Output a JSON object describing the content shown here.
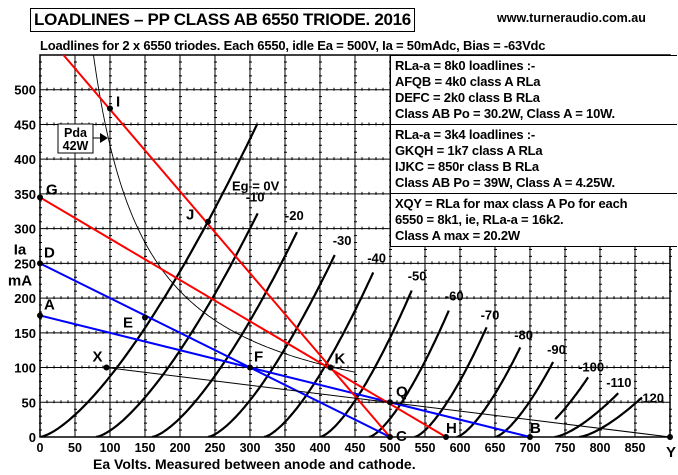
{
  "header": {
    "title": "LOADLINES – PP CLASS AB 6550 TRIODE. 2016",
    "url": "www.turneraudio.com.au",
    "subtitle": "Loadlines for 2 x 6550 triodes. Each 6550, idle Ea = 500V, Ia = 50mAdc, Bias = -63Vdc"
  },
  "notes": [
    [
      "RLa-a = 8k0 loadlines :-",
      "AFQB = 4k0 class A RLa",
      "DEFC = 2k0 class B RLa",
      "Class AB Po = 30.2W, Class A = 10W."
    ],
    [
      "RLa-a = 3k4 loadlines :-",
      "GKQH = 1k7 class A RLa",
      "IJKC = 850r class B RLa",
      "Class AB Po = 39W, Class A = 4.25W."
    ],
    [
      "XQY = RLa for max class A Po for each",
      "6550 = 8k1, ie, RLa-a = 16k2.",
      "Class A max = 20.2W"
    ]
  ],
  "chart_data": {
    "type": "line",
    "title": "LOADLINES – PP CLASS AB 6550 TRIODE. 2016",
    "xlabel": "Ea Volts. Measured between anode and cathode.",
    "ylabel": [
      "Ia",
      "mA"
    ],
    "xlim": [
      0,
      900
    ],
    "ylim": [
      0,
      550
    ],
    "grid": true,
    "xticks": [
      "0",
      "50",
      "100",
      "150",
      "200",
      "250",
      "300",
      "350",
      "400",
      "450",
      "500",
      "550",
      "600",
      "650",
      "700",
      "750",
      "800",
      "850"
    ],
    "yticks": [
      "0",
      "50",
      "100",
      "150",
      "200",
      "250",
      "300",
      "350",
      "400",
      "450",
      "500"
    ],
    "curves": [
      {
        "label": "Eg = 0V",
        "eg": 0,
        "cutoff_ea": 0,
        "end": [
          310,
          450
        ]
      },
      {
        "label": "-10",
        "eg": -10,
        "cutoff_ea": 80,
        "end": [
          311,
          322
        ]
      },
      {
        "label": "-20",
        "eg": -20,
        "cutoff_ea": 160,
        "end": [
          367,
          295
        ]
      },
      {
        "label": "-30",
        "eg": -30,
        "cutoff_ea": 240,
        "end": [
          421,
          262
        ]
      },
      {
        "label": "-40",
        "eg": -40,
        "cutoff_ea": 320,
        "end": [
          476,
          237
        ]
      },
      {
        "label": "-50",
        "eg": -50,
        "cutoff_ea": 400,
        "end": [
          531,
          211
        ]
      },
      {
        "label": "-60",
        "eg": -60,
        "cutoff_ea": 470,
        "end": [
          584,
          182
        ]
      },
      {
        "label": "-70",
        "eg": -70,
        "cutoff_ea": 535,
        "end": [
          638,
          158
        ]
      },
      {
        "label": "-80",
        "eg": -80,
        "cutoff_ea": 595,
        "end": [
          686,
          129
        ]
      },
      {
        "label": "-90",
        "eg": -90,
        "cutoff_ea": 650,
        "end": [
          733,
          108
        ]
      },
      {
        "label": "-100",
        "eg": -100,
        "cutoff_ea": 700,
        "end": [
          783,
          86
        ]
      },
      {
        "label": "-110",
        "eg": -110,
        "cutoff_ea": 735,
        "end": [
          826,
          63
        ]
      },
      {
        "label": "-120",
        "eg": -120,
        "cutoff_ea": 770,
        "end": [
          860,
          57
        ]
      }
    ],
    "loadlines": [
      {
        "name": "AFQB",
        "color": "#0000ff",
        "points": [
          [
            0,
            175
          ],
          [
            700,
            0
          ]
        ]
      },
      {
        "name": "DEFC",
        "color": "#0000ff",
        "points": [
          [
            0,
            250
          ],
          [
            500,
            0
          ]
        ]
      },
      {
        "name": "GKQH",
        "color": "#ff0000",
        "points": [
          [
            0,
            345
          ],
          [
            580,
            0
          ]
        ]
      },
      {
        "name": "IJKC",
        "color": "#ff0000",
        "points": [
          [
            31,
            553
          ],
          [
            500,
            0
          ]
        ]
      },
      {
        "name": "XQY",
        "color": "#000000",
        "points": [
          [
            95,
            100
          ],
          [
            900,
            0
          ]
        ]
      }
    ],
    "power_curve": {
      "label": [
        "Pda",
        "42W"
      ],
      "watts": 42,
      "ea_range": [
        76,
        450
      ]
    },
    "points": [
      {
        "label": "A",
        "ea": 0,
        "ia": 175
      },
      {
        "label": "D",
        "ea": 0,
        "ia": 250
      },
      {
        "label": "G",
        "ea": 0,
        "ia": 345
      },
      {
        "label": "I",
        "ea": 100,
        "ia": 473
      },
      {
        "label": "J",
        "ea": 240,
        "ia": 310
      },
      {
        "label": "E",
        "ea": 150,
        "ia": 172
      },
      {
        "label": "X",
        "ea": 95,
        "ia": 100
      },
      {
        "label": "F",
        "ea": 300,
        "ia": 100
      },
      {
        "label": "K",
        "ea": 415,
        "ia": 100
      },
      {
        "label": "Q",
        "ea": 500,
        "ia": 50
      },
      {
        "label": "C",
        "ea": 500,
        "ia": 0
      },
      {
        "label": "H",
        "ea": 580,
        "ia": 0
      },
      {
        "label": "B",
        "ea": 700,
        "ia": 0
      },
      {
        "label": "Y",
        "ea": 900,
        "ia": 0
      }
    ]
  }
}
